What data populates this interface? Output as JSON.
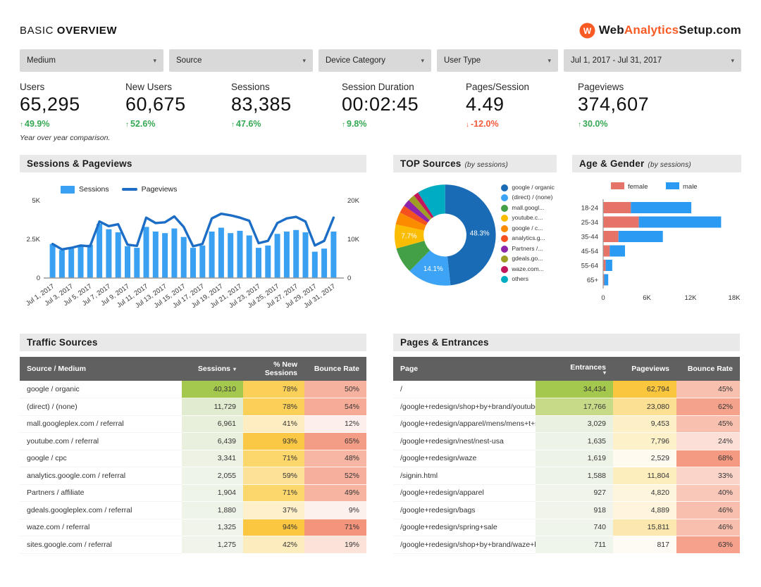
{
  "header": {
    "title_light": "BASIC",
    "title_bold": "OVERVIEW",
    "logo": {
      "mark": "W",
      "part1": "Web",
      "part2": "Analytics",
      "part3": "Setup",
      "part4": ".com"
    }
  },
  "filters": {
    "items": [
      {
        "label": "Medium"
      },
      {
        "label": "Source"
      },
      {
        "label": "Device Category"
      },
      {
        "label": "User Type"
      },
      {
        "label": "Jul 1, 2017 - Jul 31, 2017"
      }
    ]
  },
  "kpis": {
    "note": "Year over year comparison.",
    "items": [
      {
        "label": "Users",
        "value": "65,295",
        "delta": "49.9%",
        "direction": "up"
      },
      {
        "label": "New Users",
        "value": "60,675",
        "delta": "52.6%",
        "direction": "up"
      },
      {
        "label": "Sessions",
        "value": "83,385",
        "delta": "47.6%",
        "direction": "up"
      },
      {
        "label": "Session Duration",
        "value": "00:02:45",
        "delta": "9.8%",
        "direction": "up"
      },
      {
        "label": "Pages/Session",
        "value": "4.49",
        "delta": "-12.0%",
        "direction": "down"
      },
      {
        "label": "Pageviews",
        "value": "374,607",
        "delta": "30.0%",
        "direction": "up"
      }
    ]
  },
  "sections": {
    "sessions_pageviews": "Sessions & Pageviews",
    "top_sources": "TOP Sources",
    "top_sources_sub": "(by sessions)",
    "age_gender": "Age & Gender",
    "age_gender_sub": "(by sessions)",
    "traffic_sources": "Traffic Sources",
    "pages_entrances": "Pages & Entrances"
  },
  "chart_data": [
    {
      "type": "bar",
      "title": "Sessions & Pageviews",
      "x_tick_labels": [
        "Jul 1, 2017",
        "Jul 3, 2017",
        "Jul 5, 2017",
        "Jul 7, 2017",
        "Jul 9, 2017",
        "Jul 11, 2017",
        "Jul 13, 2017",
        "Jul 15, 2017",
        "Jul 17, 2017",
        "Jul 19, 2017",
        "Jul 21, 2017",
        "Jul 23, 2017",
        "Jul 25, 2017",
        "Jul 27, 2017",
        "Jul 29, 2017",
        "Jul 31, 2017"
      ],
      "series": [
        {
          "name": "Sessions",
          "type": "bar",
          "axis": "left",
          "color": "#3aa0f2",
          "values": [
            2200,
            1800,
            1900,
            2100,
            2150,
            3500,
            3150,
            2950,
            2050,
            1950,
            3300,
            3000,
            2900,
            3200,
            2650,
            1950,
            2100,
            3000,
            3250,
            2900,
            3050,
            2750,
            1950,
            2100,
            2850,
            3000,
            3100,
            2950,
            1700,
            1900,
            3000
          ]
        },
        {
          "name": "Pageviews",
          "type": "line",
          "axis": "right",
          "color": "#1c6dc5",
          "values": [
            8800,
            7400,
            7800,
            8400,
            8200,
            14600,
            13400,
            13900,
            8600,
            8300,
            15600,
            14200,
            14400,
            15900,
            13200,
            8200,
            8800,
            15400,
            16600,
            16200,
            15600,
            14800,
            9000,
            9600,
            14200,
            15400,
            15800,
            14600,
            8400,
            9600,
            15600
          ]
        }
      ],
      "left_axis": {
        "ticks": [
          "0",
          "2.5K",
          "5K"
        ],
        "max": 5000
      },
      "right_axis": {
        "ticks": [
          "0",
          "10K",
          "20K"
        ],
        "max": 20000
      },
      "legend_position": "top"
    },
    {
      "type": "pie",
      "title": "TOP Sources (by sessions)",
      "donut": true,
      "slices": [
        {
          "label": "google / organic",
          "pct": 48.3,
          "color": "#1a6bb5",
          "show_label": true
        },
        {
          "label": "(direct) / (none)",
          "pct": 14.1,
          "color": "#3da3f5",
          "show_label": true
        },
        {
          "label": "mall.googl...",
          "pct": 8.3,
          "color": "#43a047",
          "show_label": false
        },
        {
          "label": "youtube.c...",
          "pct": 7.7,
          "color": "#fbbc04",
          "show_label": true
        },
        {
          "label": "google / c...",
          "pct": 4.0,
          "color": "#fb8c00",
          "show_label": false
        },
        {
          "label": "analytics.g...",
          "pct": 2.5,
          "color": "#f4511e",
          "show_label": false
        },
        {
          "label": "Partners /...",
          "pct": 2.3,
          "color": "#8e24aa",
          "show_label": false
        },
        {
          "label": "gdeals.go...",
          "pct": 2.2,
          "color": "#9e9d24",
          "show_label": false
        },
        {
          "label": "waze.com...",
          "pct": 1.6,
          "color": "#c2185b",
          "show_label": false
        },
        {
          "label": "others",
          "pct": 9.0,
          "color": "#00acc1",
          "show_label": false
        }
      ],
      "labels_shown": [
        "48.3%",
        "14.1%",
        "7.7%"
      ],
      "legend_position": "right"
    },
    {
      "type": "bar",
      "title": "Age & Gender (by sessions)",
      "orientation": "horizontal-stacked",
      "categories": [
        "18-24",
        "25-34",
        "35-44",
        "45-54",
        "55-64",
        "65+"
      ],
      "series": [
        {
          "name": "female",
          "color": "#e57368",
          "values": [
            3800,
            4900,
            2100,
            900,
            350,
            150
          ]
        },
        {
          "name": "male",
          "color": "#2b9af3",
          "values": [
            8300,
            11300,
            6100,
            2100,
            900,
            550
          ]
        }
      ],
      "x_ticks": [
        "0",
        "6K",
        "12K",
        "18K"
      ],
      "xlim": [
        0,
        18000
      ],
      "legend_position": "top"
    }
  ],
  "tables": {
    "traffic_sources": {
      "columns": [
        {
          "label": "Source / Medium",
          "sorted": false
        },
        {
          "label": "Sessions",
          "sorted": true
        },
        {
          "label": "% New Sessions",
          "sorted": false
        },
        {
          "label": "Bounce Rate",
          "sorted": false
        }
      ],
      "rows": [
        [
          "google / organic",
          [
            "40,310",
            "#a4c74d"
          ],
          [
            "78%",
            "#fbd058"
          ],
          [
            "50%",
            "#f7b29f"
          ]
        ],
        [
          "(direct) / (none)",
          [
            "11,729",
            "#e0ebd0"
          ],
          [
            "78%",
            "#fbd058"
          ],
          [
            "54%",
            "#f6ab97"
          ]
        ],
        [
          "mall.googleplex.com / referral",
          [
            "6,961",
            "#e8efdb"
          ],
          [
            "41%",
            "#fdedc0"
          ],
          [
            "12%",
            "#fdefeb"
          ]
        ],
        [
          "youtube.com / referral",
          [
            "6,439",
            "#e9f0dd"
          ],
          [
            "93%",
            "#fbc845"
          ],
          [
            "65%",
            "#f49d86"
          ]
        ],
        [
          "google / cpc",
          [
            "3,341",
            "#edf2e5"
          ],
          [
            "71%",
            "#fcd76b"
          ],
          [
            "48%",
            "#f7b5a3"
          ]
        ],
        [
          "analytics.google.com / referral",
          [
            "2,055",
            "#eff4e8"
          ],
          [
            "59%",
            "#fde197"
          ],
          [
            "52%",
            "#f6af9c"
          ]
        ],
        [
          "Partners / affiliate",
          [
            "1,904",
            "#eff4e9"
          ],
          [
            "71%",
            "#fcd76b"
          ],
          [
            "49%",
            "#f7b4a1"
          ]
        ],
        [
          "gdeals.googleplex.com / referral",
          [
            "1,880",
            "#eff4e9"
          ],
          [
            "37%",
            "#fdf0cb"
          ],
          [
            "9%",
            "#fdf1ee"
          ]
        ],
        [
          "waze.com / referral",
          [
            "1,325",
            "#f0f4ea"
          ],
          [
            "94%",
            "#fbc640"
          ],
          [
            "71%",
            "#f3947c"
          ]
        ],
        [
          "sites.google.com / referral",
          [
            "1,275",
            "#f0f4ea"
          ],
          [
            "42%",
            "#fdecbd"
          ],
          [
            "19%",
            "#fbe3da"
          ]
        ]
      ]
    },
    "pages_entrances": {
      "columns": [
        {
          "label": "Page",
          "sorted": false
        },
        {
          "label": "Entrances",
          "sorted": true
        },
        {
          "label": "Pageviews",
          "sorted": false
        },
        {
          "label": "Bounce Rate",
          "sorted": false
        }
      ],
      "rows": [
        [
          "/",
          [
            "34,434",
            "#a4c74d"
          ],
          [
            "62,794",
            "#f9c63e"
          ],
          [
            "45%",
            "#f8c0af"
          ]
        ],
        [
          "/google+redesign/shop+by+brand/youtube",
          [
            "17,766",
            "#c6da88"
          ],
          [
            "23,080",
            "#fbe094"
          ],
          [
            "62%",
            "#f5a28c"
          ]
        ],
        [
          "/google+redesign/apparel/mens/mens+t+shirts",
          [
            "3,029",
            "#eaf1e0"
          ],
          [
            "9,453",
            "#fdf0c6"
          ],
          [
            "45%",
            "#f8c0af"
          ]
        ],
        [
          "/google+redesign/nest/nest-usa",
          [
            "1,635",
            "#eef3e7"
          ],
          [
            "7,796",
            "#fdf1ca"
          ],
          [
            "24%",
            "#fcdfd6"
          ]
        ],
        [
          "/google+redesign/waze",
          [
            "1,619",
            "#eef3e7"
          ],
          [
            "2,529",
            "#fefaf0"
          ],
          [
            "68%",
            "#f49a82"
          ]
        ],
        [
          "/signin.html",
          [
            "1,588",
            "#eef3e7"
          ],
          [
            "11,804",
            "#fdeebe"
          ],
          [
            "33%",
            "#fad4c9"
          ]
        ],
        [
          "/google+redesign/apparel",
          [
            "927",
            "#f0f4ea"
          ],
          [
            "4,820",
            "#fef5dd"
          ],
          [
            "40%",
            "#f9c8b9"
          ]
        ],
        [
          "/google+redesign/bags",
          [
            "918",
            "#f0f4ea"
          ],
          [
            "4,889",
            "#fef5dc"
          ],
          [
            "46%",
            "#f8bfae"
          ]
        ],
        [
          "/google+redesign/spring+sale",
          [
            "740",
            "#f0f5eb"
          ],
          [
            "15,811",
            "#fce8ae"
          ],
          [
            "46%",
            "#f8bfae"
          ]
        ],
        [
          "/google+redesign/shop+by+brand/waze+baby...",
          [
            "711",
            "#f0f5eb"
          ],
          [
            "817",
            "#fefbf4"
          ],
          [
            "63%",
            "#f5a18b"
          ]
        ]
      ]
    }
  },
  "colors": {
    "accent_orange": "#f95a24",
    "green_up": "#34a853",
    "red_down": "#f4593b",
    "bar_blue": "#3aa0f2",
    "line_blue": "#1c6dc5",
    "female": "#e57368",
    "male": "#2b9af3",
    "table_header_bg": "#606060",
    "section_bg": "#e9e9e9",
    "dropdown_bg": "#d9d9d9"
  }
}
